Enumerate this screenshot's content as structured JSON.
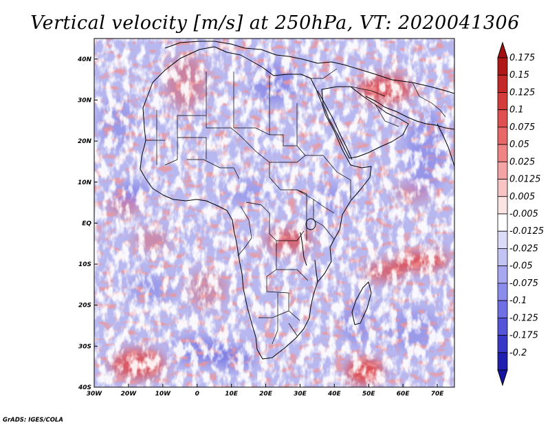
{
  "title": "Vertical velocity [m/s] at 250hPa, VT: 2020041306",
  "credit": "GrADS: IGES/COLA",
  "map": {
    "lon_range": [
      -30,
      75
    ],
    "lat_range": [
      -40,
      45
    ],
    "lon_ticks": [
      {
        "value": -30,
        "label": "30W"
      },
      {
        "value": -20,
        "label": "20W"
      },
      {
        "value": -10,
        "label": "10W"
      },
      {
        "value": 0,
        "label": "0"
      },
      {
        "value": 10,
        "label": "10E"
      },
      {
        "value": 20,
        "label": "20E"
      },
      {
        "value": 30,
        "label": "30E"
      },
      {
        "value": 40,
        "label": "40E"
      },
      {
        "value": 50,
        "label": "50E"
      },
      {
        "value": 60,
        "label": "60E"
      },
      {
        "value": 70,
        "label": "70E"
      }
    ],
    "lat_ticks": [
      {
        "value": 40,
        "label": "40N"
      },
      {
        "value": 30,
        "label": "30N"
      },
      {
        "value": 20,
        "label": "20N"
      },
      {
        "value": 10,
        "label": "10N"
      },
      {
        "value": 0,
        "label": "EQ"
      },
      {
        "value": -10,
        "label": "10S"
      },
      {
        "value": -20,
        "label": "20S"
      },
      {
        "value": -30,
        "label": "30S"
      },
      {
        "value": -40,
        "label": "40S"
      }
    ]
  },
  "colorbar": {
    "levels": [
      {
        "label": "0.175",
        "color": "#b01818"
      },
      {
        "label": "0.15",
        "color": "#c42828"
      },
      {
        "label": "0.125",
        "color": "#d43c3c"
      },
      {
        "label": "0.1",
        "color": "#e05050"
      },
      {
        "label": "0.075",
        "color": "#e86868"
      },
      {
        "label": "0.05",
        "color": "#f08484"
      },
      {
        "label": "0.025",
        "color": "#f4a4a4"
      },
      {
        "label": "0.0125",
        "color": "#f8c4c4"
      },
      {
        "label": "0.005",
        "color": "#fce4e4"
      },
      {
        "label": "-0.005",
        "color": "#ffffff"
      },
      {
        "label": "-0.0125",
        "color": "#dcdcf8"
      },
      {
        "label": "-0.025",
        "color": "#c4c4f4"
      },
      {
        "label": "-0.05",
        "color": "#a8a8f0"
      },
      {
        "label": "-0.075",
        "color": "#8c8cec"
      },
      {
        "label": "-0.1",
        "color": "#7070e4"
      },
      {
        "label": "-0.125",
        "color": "#5454d8"
      },
      {
        "label": "-0.175",
        "color": "#3838c8"
      },
      {
        "label": "-0.2",
        "color": "#2020b0"
      }
    ],
    "top_arrow_color": "#a01010",
    "bottom_arrow_color": "#1414a0"
  },
  "field_colors": {
    "rising": "#e04040",
    "sinking": "#6060e0",
    "background": "#b8b8f0"
  }
}
